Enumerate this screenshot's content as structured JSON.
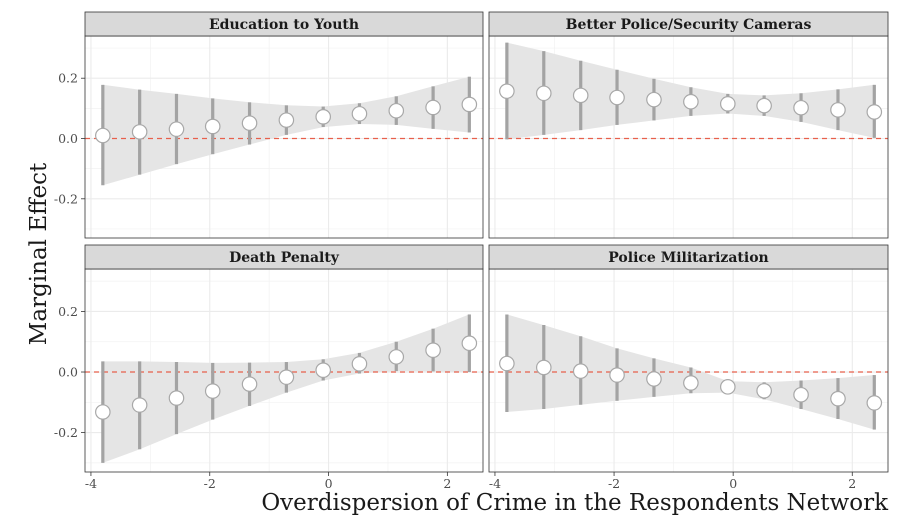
{
  "chart_data": {
    "type": "scatter",
    "xlabel": "Overdispersion of Crime in the Respondents Network",
    "ylabel": "Marginal Effect",
    "xlim": [
      -4.1,
      2.6
    ],
    "ylim": [
      -0.33,
      0.34
    ],
    "xticks": [
      -4,
      -2,
      0,
      2
    ],
    "yticks": [
      -0.2,
      0.0,
      0.2
    ],
    "xtick_labels": [
      "-4",
      "-2",
      "0",
      "2"
    ],
    "ytick_labels": [
      "-0.2",
      "0.0",
      "0.2"
    ],
    "reference_line": {
      "y": 0,
      "style": "dashed",
      "color": "#e8604c"
    },
    "grid": true,
    "x": [
      -3.8,
      -3.18,
      -2.56,
      -1.95,
      -1.33,
      -0.71,
      -0.09,
      0.52,
      1.14,
      1.76,
      2.37
    ],
    "panels": [
      {
        "name": "Education to Youth",
        "estimate": [
          0.01,
          0.022,
          0.031,
          0.04,
          0.051,
          0.061,
          0.072,
          0.082,
          0.092,
          0.103,
          0.113
        ],
        "lower": [
          -0.155,
          -0.12,
          -0.085,
          -0.052,
          -0.02,
          0.012,
          0.038,
          0.048,
          0.045,
          0.032,
          0.02
        ],
        "upper": [
          0.178,
          0.162,
          0.148,
          0.133,
          0.12,
          0.11,
          0.106,
          0.117,
          0.14,
          0.173,
          0.205
        ]
      },
      {
        "name": "Better Police/Security Cameras",
        "estimate": [
          0.157,
          0.15,
          0.143,
          0.136,
          0.129,
          0.122,
          0.115,
          0.109,
          0.102,
          0.095,
          0.088
        ],
        "lower": [
          -0.003,
          0.012,
          0.028,
          0.045,
          0.06,
          0.075,
          0.083,
          0.075,
          0.055,
          0.028,
          0.002
        ],
        "upper": [
          0.318,
          0.29,
          0.258,
          0.228,
          0.198,
          0.17,
          0.148,
          0.143,
          0.15,
          0.163,
          0.178
        ]
      },
      {
        "name": "Death Penalty",
        "estimate": [
          -0.132,
          -0.109,
          -0.086,
          -0.063,
          -0.04,
          -0.017,
          0.006,
          0.027,
          0.05,
          0.072,
          0.095
        ],
        "lower": [
          -0.3,
          -0.255,
          -0.205,
          -0.157,
          -0.112,
          -0.068,
          -0.028,
          -0.005,
          0.003,
          0.002,
          0.0
        ],
        "upper": [
          0.035,
          0.035,
          0.033,
          0.03,
          0.031,
          0.033,
          0.042,
          0.063,
          0.1,
          0.143,
          0.19
        ]
      },
      {
        "name": "Police Militarization",
        "estimate": [
          0.028,
          0.015,
          0.003,
          -0.01,
          -0.023,
          -0.036,
          -0.049,
          -0.062,
          -0.075,
          -0.088,
          -0.102
        ],
        "lower": [
          -0.132,
          -0.122,
          -0.108,
          -0.095,
          -0.082,
          -0.07,
          -0.068,
          -0.09,
          -0.122,
          -0.155,
          -0.19
        ],
        "upper": [
          0.19,
          0.155,
          0.118,
          0.078,
          0.045,
          0.015,
          -0.03,
          -0.034,
          -0.028,
          -0.02,
          -0.01
        ]
      }
    ]
  }
}
